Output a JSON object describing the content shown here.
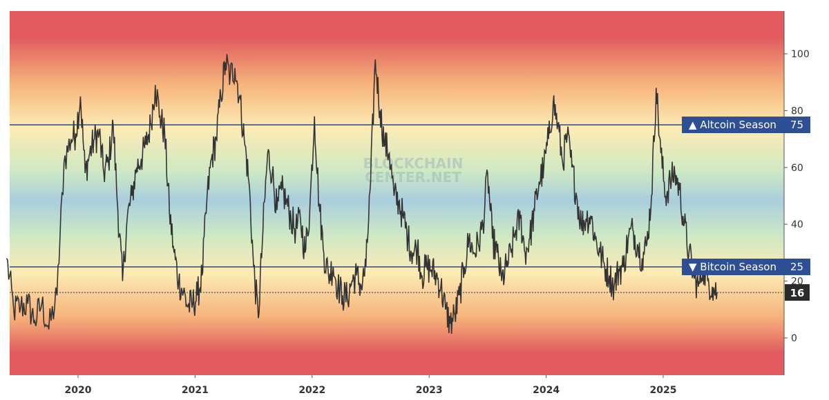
{
  "chart_data": {
    "type": "line",
    "title": "",
    "xlabel": "",
    "ylabel": "",
    "ylim": [
      -13,
      115
    ],
    "yticks": [
      0,
      20,
      40,
      60,
      80,
      100
    ],
    "xticks": [
      "2020",
      "2021",
      "2022",
      "2023",
      "2024",
      "2025"
    ],
    "watermark": [
      "BLOCKCHAIN",
      "CENTER.NET"
    ],
    "grid": false,
    "background": "gradient red-orange-yellow-green-blue-green-yellow-orange-red",
    "colors": {
      "line": "#333333",
      "threshold_line": "#2b4a8a",
      "label_bg": "#2e4f95",
      "current_label_bg": "#2b2b2b",
      "red": "#e05a5e",
      "orange": "#f6b37b",
      "yellow": "#fdebb4",
      "green": "#cfe9c4",
      "blue": "#a9cede"
    },
    "thresholds": [
      {
        "label": "▲ Altcoin Season",
        "value": 75
      },
      {
        "label": "▼ Bitcoin Season",
        "value": 25
      }
    ],
    "current": {
      "label": "16",
      "value": 16
    },
    "series": [
      {
        "x": [
          2019.39,
          2019.45,
          2019.51,
          2019.57,
          2019.63,
          2019.69,
          2019.75,
          2019.82,
          2019.88,
          2019.94,
          2019.98,
          2020.02,
          2020.06,
          2020.1,
          2020.14,
          2020.18,
          2020.22,
          2020.26,
          2020.3,
          2020.34,
          2020.38,
          2020.42,
          2020.46,
          2020.5,
          2020.54,
          2020.58,
          2020.62,
          2020.66,
          2020.7,
          2020.74,
          2020.78,
          2020.82,
          2020.86,
          2020.9,
          2020.94,
          2020.98,
          2021.02,
          2021.06,
          2021.1,
          2021.14,
          2021.18,
          2021.22,
          2021.26,
          2021.3,
          2021.34,
          2021.38,
          2021.42,
          2021.46,
          2021.5,
          2021.54,
          2021.58,
          2021.62,
          2021.66,
          2021.7,
          2021.74,
          2021.78,
          2021.82,
          2021.86,
          2021.9,
          2021.94,
          2021.98,
          2022.02,
          2022.06,
          2022.1,
          2022.14,
          2022.18,
          2022.22,
          2022.26,
          2022.3,
          2022.34,
          2022.38,
          2022.42,
          2022.46,
          2022.5,
          2022.54,
          2022.58,
          2022.62,
          2022.66,
          2022.7,
          2022.74,
          2022.78,
          2022.82,
          2022.86,
          2022.9,
          2022.94,
          2022.98,
          2023.02,
          2023.06,
          2023.1,
          2023.14,
          2023.18,
          2023.22,
          2023.26,
          2023.3,
          2023.34,
          2023.38,
          2023.42,
          2023.46,
          2023.5,
          2023.54,
          2023.58,
          2023.62,
          2023.66,
          2023.7,
          2023.74,
          2023.78,
          2023.82,
          2023.86,
          2023.9,
          2023.94,
          2023.98,
          2024.02,
          2024.06,
          2024.1,
          2024.14,
          2024.18,
          2024.22,
          2024.26,
          2024.3,
          2024.34,
          2024.38,
          2024.42,
          2024.46,
          2024.5,
          2024.54,
          2024.58,
          2024.62,
          2024.66,
          2024.7,
          2024.74,
          2024.78,
          2024.82,
          2024.86,
          2024.9,
          2024.94,
          2024.98,
          2025.02,
          2025.06,
          2025.1,
          2025.14,
          2025.18,
          2025.22,
          2025.26,
          2025.3,
          2025.34,
          2025.38,
          2025.42,
          2025.46
        ],
        "values": [
          28,
          10,
          11,
          12,
          6,
          12,
          3,
          15,
          62,
          70,
          72,
          85,
          58,
          65,
          70,
          72,
          58,
          62,
          75,
          45,
          20,
          42,
          50,
          60,
          63,
          68,
          75,
          89,
          78,
          72,
          45,
          30,
          20,
          16,
          11,
          12,
          15,
          22,
          48,
          63,
          70,
          85,
          97,
          92,
          95,
          85,
          70,
          55,
          25,
          7,
          38,
          65,
          58,
          45,
          52,
          48,
          42,
          38,
          42,
          30,
          45,
          78,
          47,
          30,
          22,
          25,
          18,
          15,
          14,
          20,
          22,
          18,
          25,
          55,
          98,
          80,
          68,
          65,
          50,
          48,
          42,
          35,
          30,
          32,
          22,
          25,
          24,
          22,
          18,
          10,
          5,
          8,
          15,
          25,
          35,
          30,
          33,
          40,
          58,
          35,
          30,
          20,
          25,
          30,
          38,
          42,
          30,
          35,
          45,
          55,
          60,
          70,
          83,
          75,
          62,
          71,
          60,
          50,
          40,
          42,
          43,
          35,
          30,
          25,
          22,
          18,
          24,
          25,
          35,
          38,
          33,
          28,
          33,
          50,
          88,
          65,
          50,
          55,
          58,
          52,
          40,
          30,
          22,
          18,
          25,
          20,
          18,
          16
        ]
      }
    ]
  }
}
